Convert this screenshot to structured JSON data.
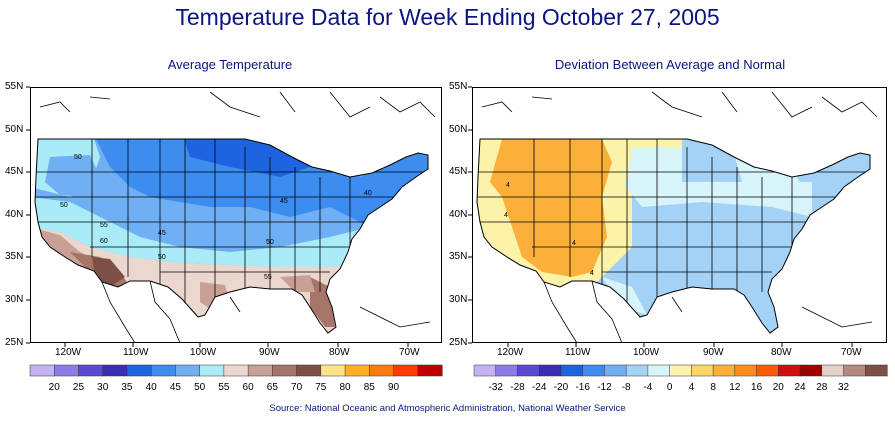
{
  "title": "Temperature Data for Week Ending October 27, 2005",
  "source": "Source:  National Oceanic and Atmospheric Administration, National Weather Service",
  "lat_labels": [
    "55N",
    "50N",
    "45N",
    "40N",
    "35N",
    "30N",
    "25N"
  ],
  "panels": [
    {
      "title": "Average Temperature",
      "lon_labels": [
        "120W",
        "110W",
        "100W",
        "90W",
        "80W",
        "70W"
      ],
      "legend": {
        "labels": [
          "20",
          "25",
          "30",
          "35",
          "40",
          "45",
          "50",
          "55",
          "60",
          "65",
          "70",
          "75",
          "80",
          "85",
          "90"
        ],
        "colors": [
          "#c2b3f2",
          "#8e7ce6",
          "#5a4bd1",
          "#3a2fb2",
          "#1e63e0",
          "#3d8df0",
          "#6faff4",
          "#a9ecf8",
          "#ecd7cf",
          "#c9a095",
          "#a67468",
          "#7d5046",
          "#fde287",
          "#ffb020",
          "#ff7a10",
          "#ff3b00",
          "#c00000"
        ]
      },
      "contour_labels": [
        "50",
        "50",
        "55",
        "60",
        "45",
        "50",
        "45",
        "50",
        "40",
        "55"
      ]
    },
    {
      "title": "Deviation Between Average and Normal",
      "lon_labels": [
        "120W",
        "110W",
        "100W",
        "90W",
        "80W",
        "70W"
      ],
      "legend": {
        "labels": [
          "-32",
          "-28",
          "-24",
          "-20",
          "-16",
          "-12",
          "-8",
          "-4",
          "0",
          "4",
          "8",
          "12",
          "16",
          "20",
          "24",
          "28",
          "32"
        ],
        "colors": [
          "#c2b3f2",
          "#8e7ce6",
          "#5a4bd1",
          "#3a2fb2",
          "#1e63e0",
          "#3d8df0",
          "#6faff4",
          "#a3d2f6",
          "#d8f4fb",
          "#fdf3a8",
          "#fdd466",
          "#fbb03b",
          "#ff8c1a",
          "#ff5a00",
          "#d01010",
          "#9e0000",
          "#e6cfc6",
          "#b48a7e",
          "#7d5046"
        ]
      },
      "contour_labels": [
        "4",
        "4",
        "4",
        "4"
      ]
    }
  ]
}
